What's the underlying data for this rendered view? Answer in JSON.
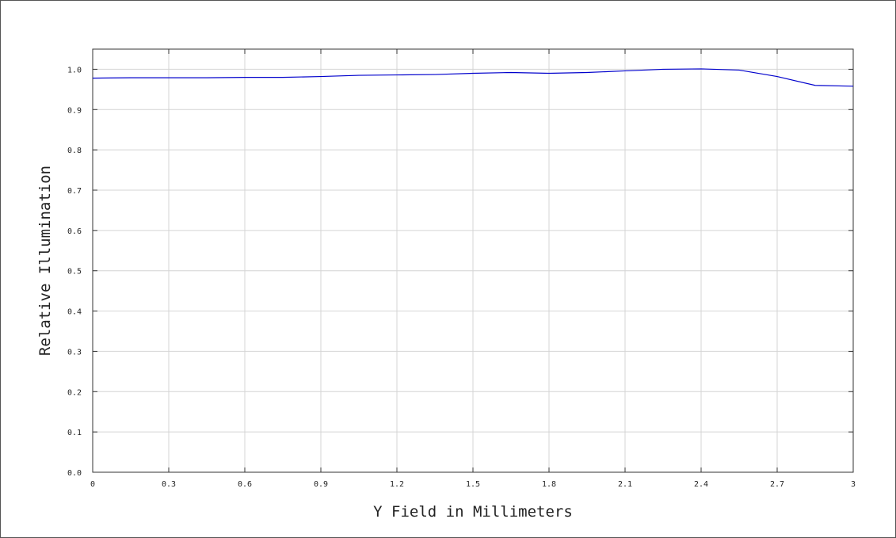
{
  "chart_data": {
    "type": "line",
    "title": "",
    "xlabel": "Y Field in Millimeters",
    "ylabel": "Relative Illumination",
    "xlim": [
      0,
      3
    ],
    "ylim": [
      0,
      1.05
    ],
    "grid": true,
    "x_ticks": [
      0,
      0.3,
      0.6,
      0.9,
      1.2,
      1.5,
      1.8,
      2.1,
      2.4,
      2.7,
      3
    ],
    "x_tick_labels": [
      "0",
      "0.3",
      "0.6",
      "0.9",
      "1.2",
      "1.5",
      "1.8",
      "2.1",
      "2.4",
      "2.7",
      "3"
    ],
    "y_ticks": [
      0,
      0.1,
      0.2,
      0.3,
      0.4,
      0.5,
      0.6,
      0.7,
      0.8,
      0.9,
      1.0
    ],
    "y_tick_labels": [
      "0.0",
      "0.1",
      "0.2",
      "0.3",
      "0.4",
      "0.5",
      "0.6",
      "0.7",
      "0.8",
      "0.9",
      "1.0"
    ],
    "series": [
      {
        "color": "#0000cc",
        "x": [
          0,
          0.15,
          0.3,
          0.45,
          0.6,
          0.75,
          0.9,
          1.05,
          1.2,
          1.35,
          1.5,
          1.65,
          1.8,
          1.95,
          2.1,
          2.25,
          2.4,
          2.55,
          2.7,
          2.85,
          3.0
        ],
        "y": [
          0.978,
          0.979,
          0.979,
          0.979,
          0.98,
          0.98,
          0.982,
          0.985,
          0.986,
          0.987,
          0.99,
          0.992,
          0.99,
          0.992,
          0.996,
          1.0,
          1.001,
          0.998,
          0.982,
          0.96,
          0.958
        ]
      }
    ]
  }
}
